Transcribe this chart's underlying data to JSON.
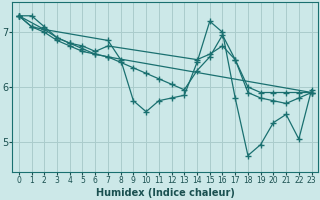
{
  "xlabel": "Humidex (Indice chaleur)",
  "bg_color": "#cce8e8",
  "grid_color": "#aacccc",
  "line_color": "#1a7070",
  "xlim": [
    -0.5,
    23.5
  ],
  "ylim": [
    4.45,
    7.55
  ],
  "yticks": [
    5,
    6,
    7
  ],
  "xticks": [
    0,
    1,
    2,
    3,
    4,
    5,
    6,
    7,
    8,
    9,
    10,
    11,
    12,
    13,
    14,
    15,
    16,
    17,
    18,
    19,
    20,
    21,
    22,
    23
  ],
  "series": [
    [
      [
        0,
        7.3
      ],
      [
        1,
        7.3
      ],
      [
        2,
        7.1
      ],
      [
        3,
        6.9
      ],
      [
        4,
        6.8
      ],
      [
        5,
        6.7
      ],
      [
        6,
        6.6
      ],
      [
        7,
        6.55
      ],
      [
        8,
        6.45
      ],
      [
        9,
        6.35
      ],
      [
        10,
        6.25
      ],
      [
        11,
        6.15
      ],
      [
        12,
        6.05
      ],
      [
        13,
        5.95
      ],
      [
        14,
        6.3
      ],
      [
        15,
        6.55
      ],
      [
        16,
        6.95
      ],
      [
        17,
        6.5
      ],
      [
        18,
        6.0
      ],
      [
        19,
        5.9
      ],
      [
        20,
        5.9
      ],
      [
        21,
        5.9
      ],
      [
        22,
        5.9
      ],
      [
        23,
        5.9
      ]
    ],
    [
      [
        0,
        7.3
      ],
      [
        1,
        7.1
      ],
      [
        2,
        7.05
      ],
      [
        7,
        6.85
      ],
      [
        8,
        6.5
      ],
      [
        9,
        5.75
      ],
      [
        10,
        5.55
      ],
      [
        11,
        5.75
      ],
      [
        12,
        5.8
      ],
      [
        13,
        5.85
      ],
      [
        14,
        6.45
      ],
      [
        15,
        7.2
      ],
      [
        16,
        7.0
      ],
      [
        17,
        5.8
      ],
      [
        18,
        4.75
      ],
      [
        19,
        4.95
      ],
      [
        20,
        5.35
      ],
      [
        21,
        5.5
      ],
      [
        22,
        5.05
      ],
      [
        23,
        5.95
      ]
    ],
    [
      [
        0,
        7.3
      ],
      [
        2,
        7.05
      ],
      [
        3,
        6.9
      ],
      [
        4,
        6.8
      ],
      [
        5,
        6.75
      ],
      [
        6,
        6.65
      ],
      [
        7,
        6.75
      ],
      [
        14,
        6.5
      ],
      [
        15,
        6.6
      ],
      [
        16,
        6.75
      ],
      [
        17,
        6.5
      ],
      [
        18,
        5.9
      ],
      [
        19,
        5.8
      ],
      [
        20,
        5.75
      ],
      [
        21,
        5.7
      ],
      [
        22,
        5.8
      ],
      [
        23,
        5.9
      ]
    ],
    [
      [
        0,
        7.3
      ],
      [
        1,
        7.1
      ],
      [
        2,
        7.0
      ],
      [
        3,
        6.85
      ],
      [
        4,
        6.75
      ],
      [
        5,
        6.65
      ],
      [
        6,
        6.6
      ],
      [
        7,
        6.55
      ],
      [
        23,
        5.9
      ]
    ]
  ]
}
